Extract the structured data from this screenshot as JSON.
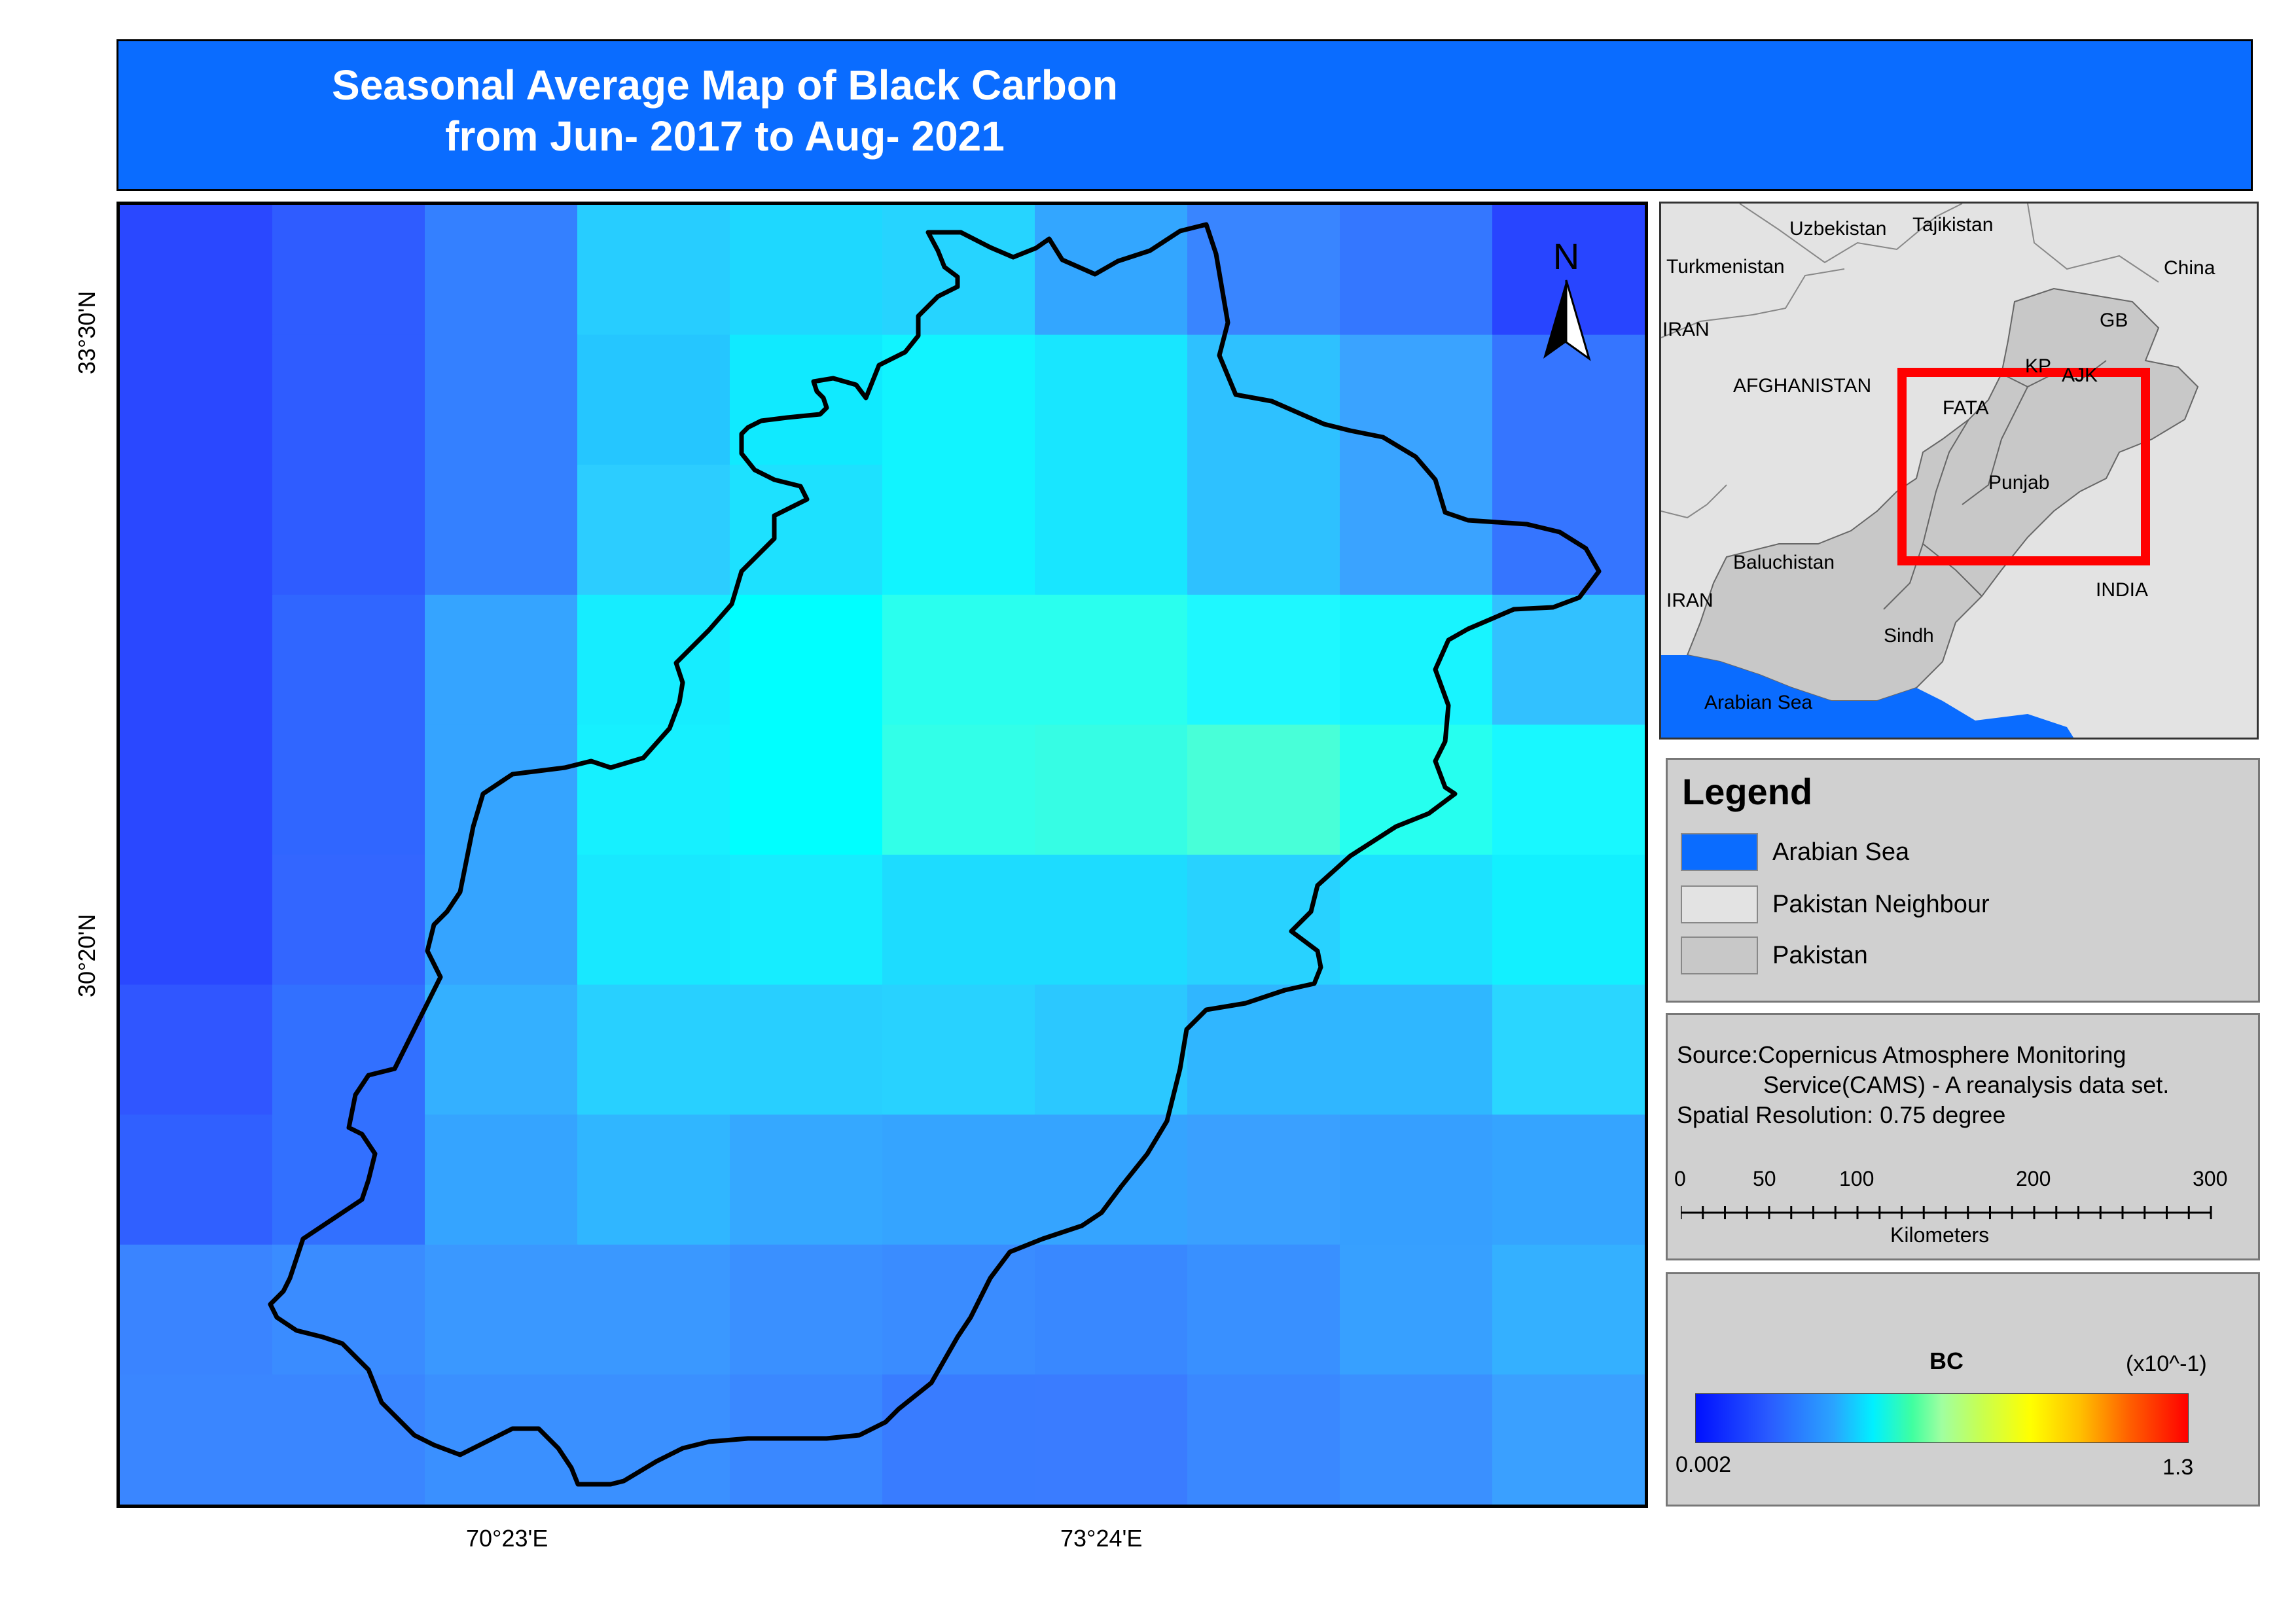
{
  "title": {
    "line1": "Seasonal  Average Map of Black Carbon",
    "line2": "from Jun- 2017 to Aug- 2021"
  },
  "map": {
    "north_arrow_label": "N",
    "lat_labels": [
      "33°30'N",
      "30°20'N"
    ],
    "lon_labels": [
      "70°23'E",
      "73°24'E"
    ],
    "bc_grid_colors": [
      [
        "#2a48ff",
        "#2f5cff",
        "#3480ff",
        "#27cdff",
        "#1ed8ff",
        "#26d4ff",
        "#33a6ff",
        "#3985ff",
        "#3477ff",
        "#2845ff"
      ],
      [
        "#2a48ff",
        "#2f5cff",
        "#3480ff",
        "#25c6ff",
        "#10eaff",
        "#11f4ff",
        "#18e6ff",
        "#2ec1ff",
        "#3aa3ff",
        "#3575ff"
      ],
      [
        "#2a48ff",
        "#2f5cff",
        "#3480ff",
        "#2ccdff",
        "#1de1ff",
        "#11f4ff",
        "#18e6ff",
        "#2ec1ff",
        "#3aa3ff",
        "#3575ff"
      ],
      [
        "#2a48ff",
        "#3066ff",
        "#35a4ff",
        "#16edff",
        "#00ffff",
        "#2affee",
        "#2affee",
        "#1ef8ff",
        "#18f4ff",
        "#32c1ff"
      ],
      [
        "#2a48ff",
        "#3066ff",
        "#35a4ff",
        "#16f0ff",
        "#00ffff",
        "#32ffe8",
        "#36fde4",
        "#48ffd8",
        "#26ffef",
        "#18f8ff"
      ],
      [
        "#2a48ff",
        "#3366ff",
        "#35a4ff",
        "#18e8ff",
        "#16edff",
        "#1ddcff",
        "#1ddcff",
        "#28d2ff",
        "#1ce2ff",
        "#12f0ff"
      ],
      [
        "#3056ff",
        "#3270ff",
        "#34b0ff",
        "#28d0ff",
        "#28cfff",
        "#28d2ff",
        "#2bc8ff",
        "#30b6ff",
        "#2fb7ff",
        "#2ad6ff"
      ],
      [
        "#3060ff",
        "#3270ff",
        "#35a4ff",
        "#30b6ff",
        "#35a8ff",
        "#35a4ff",
        "#35a4ff",
        "#3aa0ff",
        "#369fff",
        "#35a4ff"
      ],
      [
        "#3a84ff",
        "#3a8cff",
        "#3a98ff",
        "#3a98ff",
        "#3a90ff",
        "#3a8cff",
        "#3988ff",
        "#3990ff",
        "#37a0ff",
        "#34b0ff"
      ],
      [
        "#3a86ff",
        "#3a86ff",
        "#3a90ff",
        "#3a90ff",
        "#3a88ff",
        "#397cff",
        "#3a7cff",
        "#3a88ff",
        "#3a90ff",
        "#3aa0ff"
      ]
    ]
  },
  "inset": {
    "labels": [
      "Uzbekistan",
      "Tajikistan",
      "Turkmenistan",
      "China",
      "GB",
      "IRAN",
      "KP",
      "AJK",
      "AFGHANISTAN",
      "FATA",
      "Punjab",
      "Baluchistan",
      "IRAN",
      "INDIA",
      "Sindh",
      "Arabian Sea"
    ]
  },
  "legend": {
    "title": "Legend",
    "items": [
      {
        "label": "Arabian Sea",
        "color": "#0a6cff"
      },
      {
        "label": "Pakistan Neighbour",
        "color": "#e3e3e3"
      },
      {
        "label": "Pakistan",
        "color": "#c8c8c8"
      }
    ]
  },
  "source": {
    "line1": "Source:Copernicus Atmosphere Monitoring",
    "line2": "Service(CAMS) - A reanalysis data set.",
    "line3": "Spatial Resolution: 0.75 degree",
    "scale_ticks": [
      "0",
      "50",
      "100",
      "200",
      "300"
    ],
    "scale_unit": "Kilometers"
  },
  "colorbar": {
    "title": "BC",
    "unit": "(x10^-1)",
    "min_label": "0.002",
    "max_label": "1.3"
  }
}
